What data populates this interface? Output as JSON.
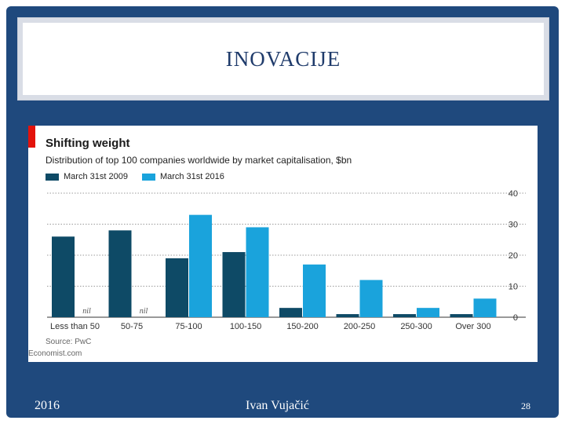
{
  "slide": {
    "title": "INOVACIJE",
    "footer_left": "2016",
    "footer_center": "Ivan Vujačić",
    "page_number": "28"
  },
  "chart_data": {
    "type": "bar",
    "title": "Shifting weight",
    "subtitle": "Distribution of top 100 companies worldwide by market capitalisation, $bn",
    "categories": [
      "Less than 50",
      "50-75",
      "75-100",
      "100-150",
      "150-200",
      "200-250",
      "250-300",
      "Over 300"
    ],
    "series": [
      {
        "name": "March 31st 2009",
        "color": "#0e4a66",
        "values": [
          26,
          28,
          19,
          21,
          3,
          1,
          1,
          1
        ]
      },
      {
        "name": "March 31st 2016",
        "color": "#1aa3dc",
        "values": [
          0,
          0,
          33,
          29,
          17,
          12,
          3,
          6
        ]
      }
    ],
    "nil_label": "nil",
    "ylim": [
      0,
      40
    ],
    "yticks": [
      0,
      10,
      20,
      30,
      40
    ],
    "grid": true,
    "axis_side": "right",
    "source": "Source: PwC",
    "credit": "Economist.com"
  }
}
